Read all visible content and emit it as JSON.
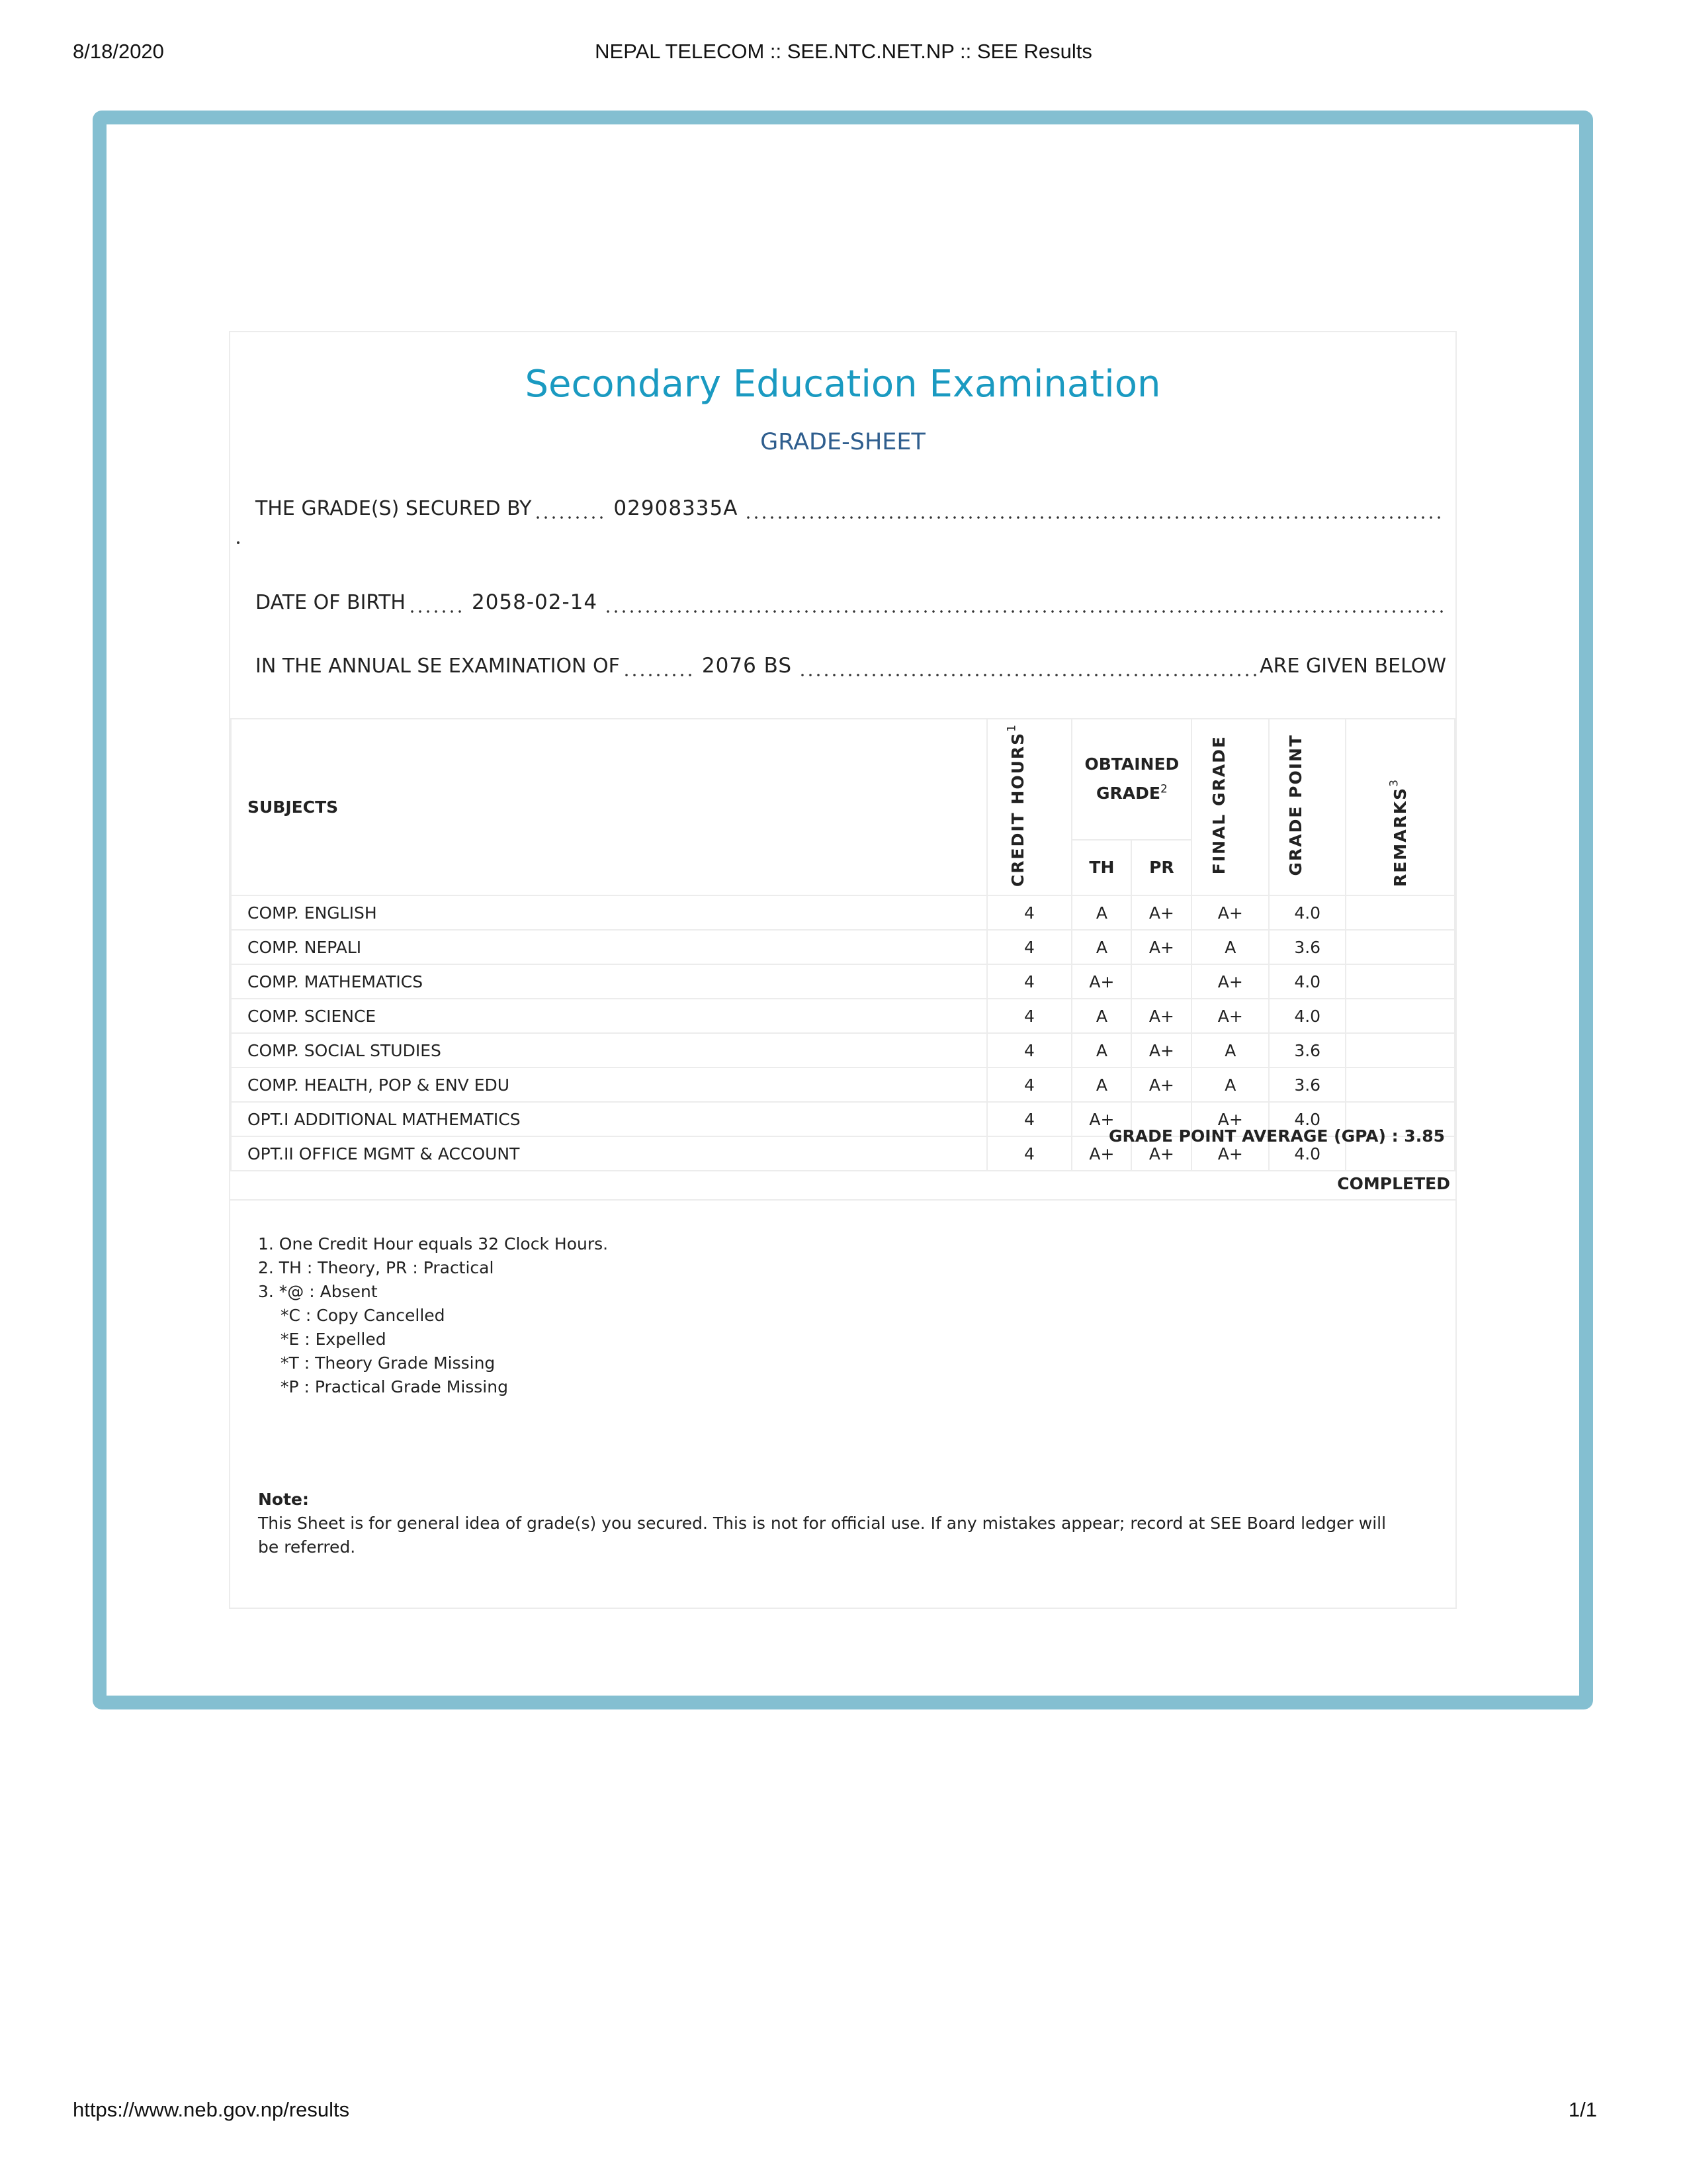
{
  "print_header": {
    "date": "8/18/2020",
    "page_title": "NEPAL TELECOM :: SEE.NTC.NET.NP :: SEE Results"
  },
  "print_footer": {
    "url": "https://www.neb.gov.np/results",
    "page": "1/1"
  },
  "colors": {
    "frame": "#84bfd1",
    "title": "#1a9ac1",
    "subtitle": "#2f5e8e"
  },
  "sheet": {
    "title": "Secondary Education Examination",
    "subtitle": "GRADE-SHEET",
    "secured_by_label": "THE GRADE(S) SECURED BY",
    "symbol_no": "02908335A",
    "dob_label": "DATE OF BIRTH",
    "dob": "2058-02-14",
    "exam_label": "IN THE ANNUAL SE EXAMINATION OF",
    "exam_year": "2076 BS",
    "given_below": "ARE GIVEN BELOW"
  },
  "table": {
    "headers": {
      "subjects": "SUBJECTS",
      "credit_hours": "CREDIT HOURS",
      "credit_sup": "1",
      "obtained_grade": "OBTAINED GRADE",
      "obtained_sup": "2",
      "th": "TH",
      "pr": "PR",
      "final_grade": "FINAL GRADE",
      "grade_point": "GRADE POINT",
      "remarks": "REMARKS",
      "remarks_sup": "3"
    },
    "rows": [
      {
        "subject": "COMP. ENGLISH",
        "credit": "4",
        "th": "A",
        "pr": "A+",
        "final": "A+",
        "gp": "4.0",
        "remarks": ""
      },
      {
        "subject": "COMP. NEPALI",
        "credit": "4",
        "th": "A",
        "pr": "A+",
        "final": "A",
        "gp": "3.6",
        "remarks": ""
      },
      {
        "subject": "COMP. MATHEMATICS",
        "credit": "4",
        "th": "A+",
        "pr": "",
        "final": "A+",
        "gp": "4.0",
        "remarks": ""
      },
      {
        "subject": "COMP. SCIENCE",
        "credit": "4",
        "th": "A",
        "pr": "A+",
        "final": "A+",
        "gp": "4.0",
        "remarks": ""
      },
      {
        "subject": "COMP. SOCIAL STUDIES",
        "credit": "4",
        "th": "A",
        "pr": "A+",
        "final": "A",
        "gp": "3.6",
        "remarks": ""
      },
      {
        "subject": "COMP. HEALTH, POP & ENV EDU",
        "credit": "4",
        "th": "A",
        "pr": "A+",
        "final": "A",
        "gp": "3.6",
        "remarks": ""
      },
      {
        "subject": "OPT.I ADDITIONAL MATHEMATICS",
        "credit": "4",
        "th": "A+",
        "pr": "",
        "final": "A+",
        "gp": "4.0",
        "remarks": ""
      },
      {
        "subject": "OPT.II OFFICE MGMT & ACCOUNT",
        "credit": "4",
        "th": "A+",
        "pr": "A+",
        "final": "A+",
        "gp": "4.0",
        "remarks": ""
      }
    ]
  },
  "gpa": "GRADE POINT AVERAGE (GPA) : 3.85",
  "status": "COMPLETED",
  "footnotes": [
    "1. One Credit Hour equals 32 Clock Hours.",
    "2. TH : Theory, PR : Practical",
    "3. *@ : Absent",
    "*C : Copy Cancelled",
    "*E : Expelled",
    "*T : Theory Grade Missing",
    "*P : Practical Grade Missing"
  ],
  "note": {
    "label": "Note:",
    "text": "This Sheet is for general idea of grade(s) you secured. This is not for official use. If any mistakes appear; record at SEE Board ledger will be referred."
  }
}
